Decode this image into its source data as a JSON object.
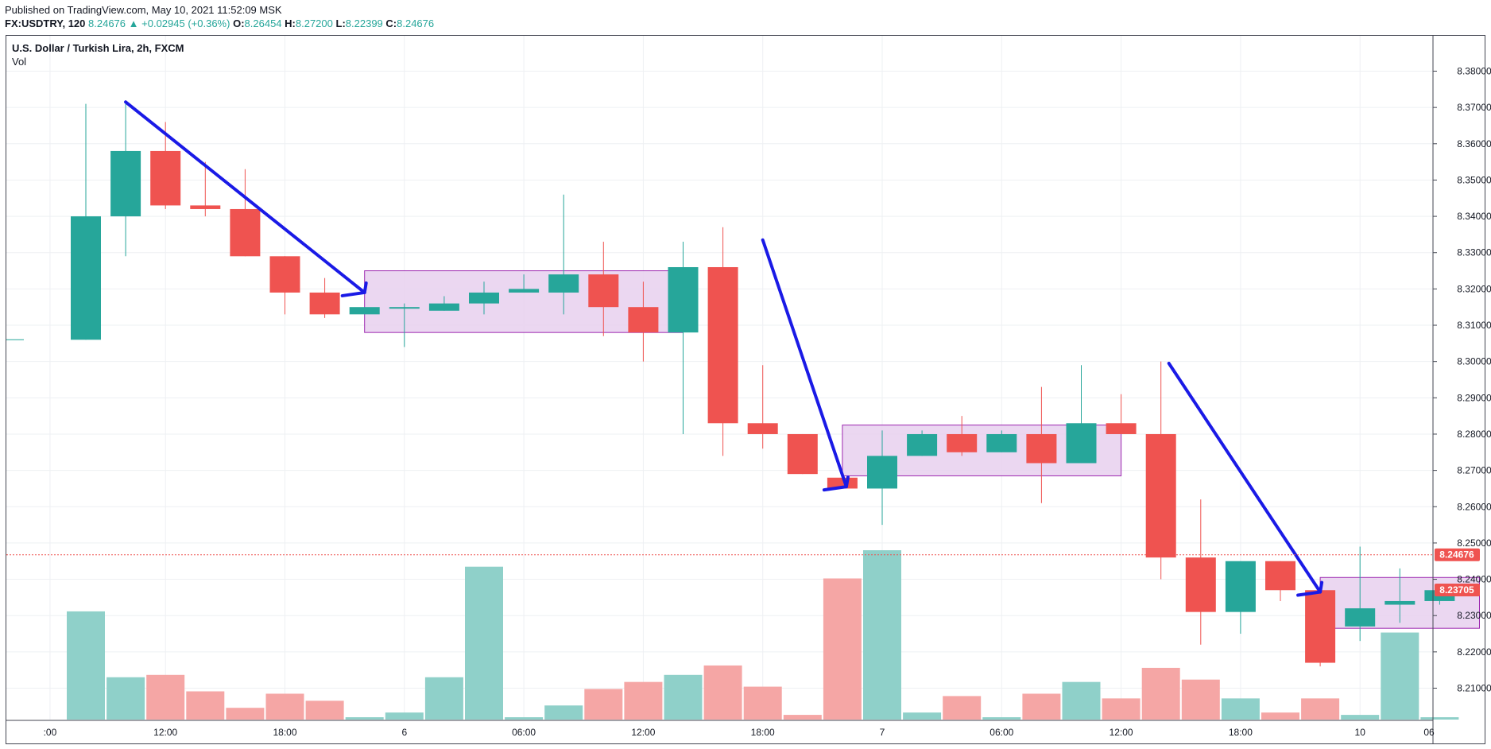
{
  "header": {
    "published": "Published on TradingView.com, May 10, 2021 11:52:09 MSK",
    "symbol": "FX:USDTRY, 120",
    "last": "8.24676",
    "change_arrow": "▲",
    "change": "+0.02945 (+0.36%)",
    "o_label": "O:",
    "o_value": "8.26454",
    "h_label": "H:",
    "h_value": "8.27200",
    "l_label": "L:",
    "l_value": "8.22399",
    "c_label": "C:",
    "c_value": "8.24676"
  },
  "legend": {
    "title": "U.S. Dollar / Turkish Lira, 2h, FXCM",
    "volume": "Vol"
  },
  "colors": {
    "up": "#26a69a",
    "down": "#ef5350",
    "up_volume": "#8fd0c9",
    "down_volume": "#f5a6a5",
    "trend_line": "#1a1ae6",
    "range_fill": "#e8d0ef",
    "range_border": "#9c27b0",
    "grid": "#eef0f3"
  },
  "chart_data": {
    "type": "candlestick",
    "price_ticks": [
      "8.38000",
      "8.37000",
      "8.36000",
      "8.35000",
      "8.34000",
      "8.33000",
      "8.32000",
      "8.31000",
      "8.30000",
      "8.29000",
      "8.28000",
      "8.27000",
      "8.26000",
      "8.25000",
      "8.24000",
      "8.23000",
      "8.22000",
      "8.21000"
    ],
    "ylim": [
      8.2,
      8.385
    ],
    "time_ticks": [
      {
        "index": -0.9,
        "label": ":00"
      },
      {
        "index": 2,
        "label": "12:00"
      },
      {
        "index": 5,
        "label": "18:00"
      },
      {
        "index": 8,
        "label": "6"
      },
      {
        "index": 11,
        "label": "06:00"
      },
      {
        "index": 14,
        "label": "12:00"
      },
      {
        "index": 17,
        "label": "18:00"
      },
      {
        "index": 20,
        "label": "7"
      },
      {
        "index": 23,
        "label": "06:00"
      },
      {
        "index": 26,
        "label": "12:00"
      },
      {
        "index": 29,
        "label": "18:00"
      },
      {
        "index": 32,
        "label": "10"
      },
      {
        "index": 34.9,
        "label": "06"
      }
    ],
    "candles": [
      {
        "o": 8.306,
        "h": 8.371,
        "l": 8.306,
        "c": 8.34,
        "v": 0.46
      },
      {
        "o": 8.34,
        "h": 8.371,
        "l": 8.329,
        "c": 8.358,
        "v": 0.18
      },
      {
        "o": 8.358,
        "h": 8.366,
        "l": 8.342,
        "c": 8.343,
        "v": 0.19
      },
      {
        "o": 8.343,
        "h": 8.355,
        "l": 8.34,
        "c": 8.342,
        "v": 0.12
      },
      {
        "o": 8.342,
        "h": 8.353,
        "l": 8.329,
        "c": 8.329,
        "v": 0.05
      },
      {
        "o": 8.329,
        "h": 8.329,
        "l": 8.313,
        "c": 8.319,
        "v": 0.11
      },
      {
        "o": 8.319,
        "h": 8.323,
        "l": 8.312,
        "c": 8.313,
        "v": 0.08
      },
      {
        "o": 8.313,
        "h": 8.315,
        "l": 8.313,
        "c": 8.315,
        "v": 0.01
      },
      {
        "o": 8.315,
        "h": 8.316,
        "l": 8.304,
        "c": 8.315,
        "v": 0.03
      },
      {
        "o": 8.314,
        "h": 8.318,
        "l": 8.314,
        "c": 8.316,
        "v": 0.18
      },
      {
        "o": 8.316,
        "h": 8.322,
        "l": 8.313,
        "c": 8.319,
        "v": 0.65
      },
      {
        "o": 8.319,
        "h": 8.324,
        "l": 8.319,
        "c": 8.32,
        "v": 0.01
      },
      {
        "o": 8.319,
        "h": 8.346,
        "l": 8.313,
        "c": 8.324,
        "v": 0.06
      },
      {
        "o": 8.324,
        "h": 8.333,
        "l": 8.307,
        "c": 8.315,
        "v": 0.13
      },
      {
        "o": 8.315,
        "h": 8.322,
        "l": 8.3,
        "c": 8.308,
        "v": 0.16
      },
      {
        "o": 8.308,
        "h": 8.333,
        "l": 8.28,
        "c": 8.326,
        "v": 0.19
      },
      {
        "o": 8.326,
        "h": 8.337,
        "l": 8.274,
        "c": 8.283,
        "v": 0.23
      },
      {
        "o": 8.283,
        "h": 8.299,
        "l": 8.276,
        "c": 8.28,
        "v": 0.14
      },
      {
        "o": 8.28,
        "h": 8.28,
        "l": 8.269,
        "c": 8.269,
        "v": 0.02
      },
      {
        "o": 8.268,
        "h": 8.268,
        "l": 8.265,
        "c": 8.265,
        "v": 0.6
      },
      {
        "o": 8.265,
        "h": 8.281,
        "l": 8.255,
        "c": 8.274,
        "v": 0.72
      },
      {
        "o": 8.274,
        "h": 8.281,
        "l": 8.274,
        "c": 8.28,
        "v": 0.03
      },
      {
        "o": 8.28,
        "h": 8.285,
        "l": 8.274,
        "c": 8.275,
        "v": 0.1
      },
      {
        "o": 8.275,
        "h": 8.281,
        "l": 8.275,
        "c": 8.28,
        "v": 0.01
      },
      {
        "o": 8.28,
        "h": 8.293,
        "l": 8.261,
        "c": 8.272,
        "v": 0.11
      },
      {
        "o": 8.272,
        "h": 8.299,
        "l": 8.272,
        "c": 8.283,
        "v": 0.16
      },
      {
        "o": 8.283,
        "h": 8.291,
        "l": 8.28,
        "c": 8.28,
        "v": 0.09
      },
      {
        "o": 8.28,
        "h": 8.3,
        "l": 8.24,
        "c": 8.246,
        "v": 0.22
      },
      {
        "o": 8.246,
        "h": 8.262,
        "l": 8.222,
        "c": 8.231,
        "v": 0.17
      },
      {
        "o": 8.231,
        "h": 8.245,
        "l": 8.225,
        "c": 8.245,
        "v": 0.09
      },
      {
        "o": 8.245,
        "h": 8.245,
        "l": 8.234,
        "c": 8.237,
        "v": 0.03
      },
      {
        "o": 8.237,
        "h": 8.237,
        "l": 8.216,
        "c": 8.217,
        "v": 0.09
      },
      {
        "o": 8.227,
        "h": 8.249,
        "l": 8.223,
        "c": 8.232,
        "v": 0.02
      },
      {
        "o": 8.233,
        "h": 8.243,
        "l": 8.228,
        "c": 8.234,
        "v": 0.37
      },
      {
        "o": 8.234,
        "h": 8.237,
        "l": 8.233,
        "c": 8.237,
        "v": 0.01
      }
    ],
    "trend_lines": [
      {
        "x1": 1,
        "y1": 8.3715,
        "x2": 7,
        "y2": 8.319
      },
      {
        "x1": 17,
        "y1": 8.3335,
        "x2": 19.1,
        "y2": 8.2655
      },
      {
        "x1": 27.2,
        "y1": 8.2995,
        "x2": 31,
        "y2": 8.2365
      }
    ],
    "ranges": [
      {
        "x1": 7,
        "x2": 15,
        "top": 8.325,
        "bottom": 8.308
      },
      {
        "x1": 19,
        "x2": 26,
        "top": 8.2825,
        "bottom": 8.2685
      },
      {
        "x1": 31,
        "x2": 35,
        "top": 8.2405,
        "bottom": 8.2265
      }
    ],
    "price_markers": [
      {
        "label": "8.24676",
        "price": 8.24676
      },
      {
        "label": "8.23705",
        "price": 8.23705
      }
    ],
    "volume_max": 0.72,
    "grid": true
  }
}
